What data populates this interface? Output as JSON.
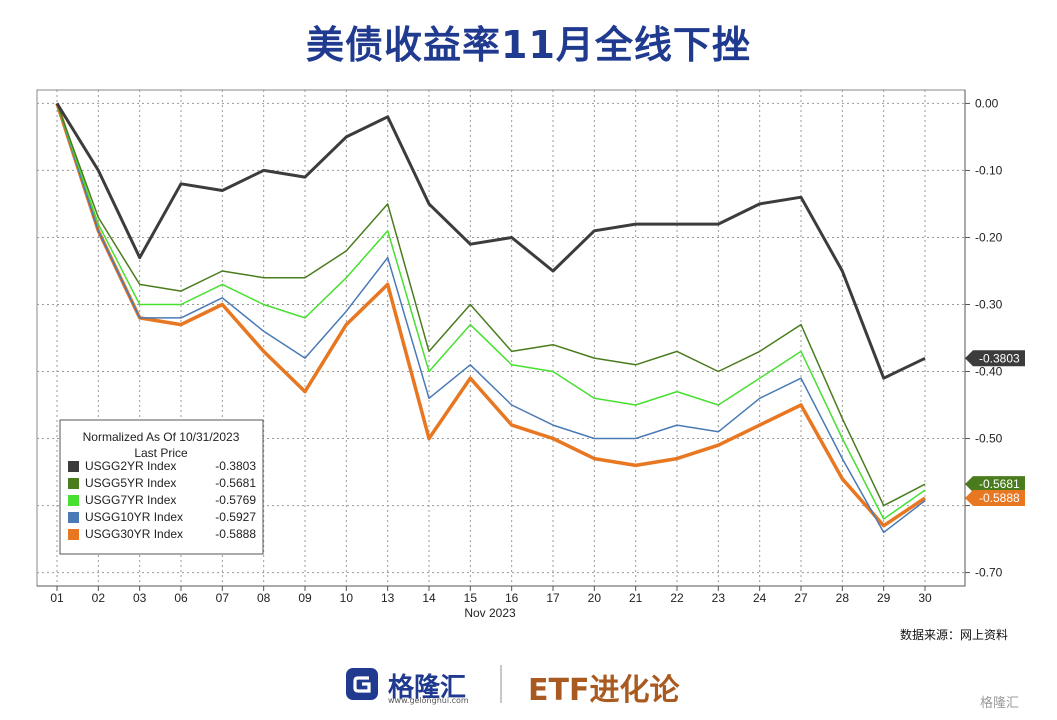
{
  "title": "美债收益率11月全线下挫",
  "source_note": "数据来源：网上资料",
  "footer": {
    "brand": "格隆汇",
    "domain": "www.gelonghui.com",
    "tagline": "ETF进化论"
  },
  "watermark": "格隆汇",
  "legend": {
    "header_line1": "Normalized As Of 10/31/2023",
    "header_line2": "Last Price"
  },
  "colors": {
    "USGG2YR": "#3c3c3c",
    "USGG5YR": "#4a7c1e",
    "USGG7YR": "#48e030",
    "USGG10YR": "#4a7ab5",
    "USGG30YR": "#e87722",
    "title": "#1f3a8f",
    "grid": "#9a9a9a"
  },
  "chart_data": {
    "type": "line",
    "title": "",
    "xlabel": "Nov 2023",
    "ylabel": "",
    "ylim": [
      -0.72,
      0.02
    ],
    "grid": true,
    "legend_position": "bottom-left",
    "yticks": [
      0.0,
      -0.1,
      -0.2,
      -0.3,
      -0.4,
      -0.5,
      -0.6,
      -0.7
    ],
    "ytick_labels": [
      "0.00",
      "-0.10",
      "-0.20",
      "-0.30",
      "-0.40",
      "-0.50",
      "",
      "-0.70"
    ],
    "x": [
      "01",
      "02",
      "03",
      "06",
      "07",
      "08",
      "09",
      "10",
      "13",
      "14",
      "15",
      "16",
      "17",
      "20",
      "21",
      "22",
      "23",
      "24",
      "27",
      "28",
      "29",
      "30"
    ],
    "series": [
      {
        "name": "USGG2YR Index",
        "last": "-0.3803",
        "last_label": "-0.3803",
        "values": [
          0.0,
          -0.1,
          -0.23,
          -0.12,
          -0.13,
          -0.1,
          -0.11,
          -0.05,
          -0.02,
          -0.15,
          -0.21,
          -0.2,
          -0.25,
          -0.19,
          -0.18,
          -0.18,
          -0.18,
          -0.15,
          -0.14,
          -0.25,
          -0.41,
          -0.3803
        ]
      },
      {
        "name": "USGG5YR Index",
        "last": "-0.5681",
        "last_label": "-0.5681",
        "values": [
          0.0,
          -0.17,
          -0.27,
          -0.28,
          -0.25,
          -0.26,
          -0.26,
          -0.22,
          -0.15,
          -0.37,
          -0.3,
          -0.37,
          -0.36,
          -0.38,
          -0.39,
          -0.37,
          -0.4,
          -0.37,
          -0.33,
          -0.47,
          -0.6,
          -0.5681
        ]
      },
      {
        "name": "USGG7YR Index",
        "last": "-0.5769",
        "last_label": "",
        "values": [
          0.0,
          -0.18,
          -0.3,
          -0.3,
          -0.27,
          -0.3,
          -0.32,
          -0.26,
          -0.19,
          -0.4,
          -0.33,
          -0.39,
          -0.4,
          -0.44,
          -0.45,
          -0.43,
          -0.45,
          -0.41,
          -0.37,
          -0.5,
          -0.62,
          -0.5769
        ]
      },
      {
        "name": "USGG10YR Index",
        "last": "-0.5927",
        "last_label": "",
        "values": [
          0.0,
          -0.19,
          -0.32,
          -0.32,
          -0.29,
          -0.34,
          -0.38,
          -0.31,
          -0.23,
          -0.44,
          -0.39,
          -0.45,
          -0.48,
          -0.5,
          -0.5,
          -0.48,
          -0.49,
          -0.44,
          -0.41,
          -0.53,
          -0.64,
          -0.5927
        ]
      },
      {
        "name": "USGG30YR Index",
        "last": "-0.5888",
        "last_label": "-0.5888",
        "values": [
          0.0,
          -0.19,
          -0.32,
          -0.33,
          -0.3,
          -0.37,
          -0.43,
          -0.33,
          -0.27,
          -0.5,
          -0.41,
          -0.48,
          -0.5,
          -0.53,
          -0.54,
          -0.53,
          -0.51,
          -0.48,
          -0.45,
          -0.56,
          -0.63,
          -0.5888
        ]
      }
    ]
  }
}
